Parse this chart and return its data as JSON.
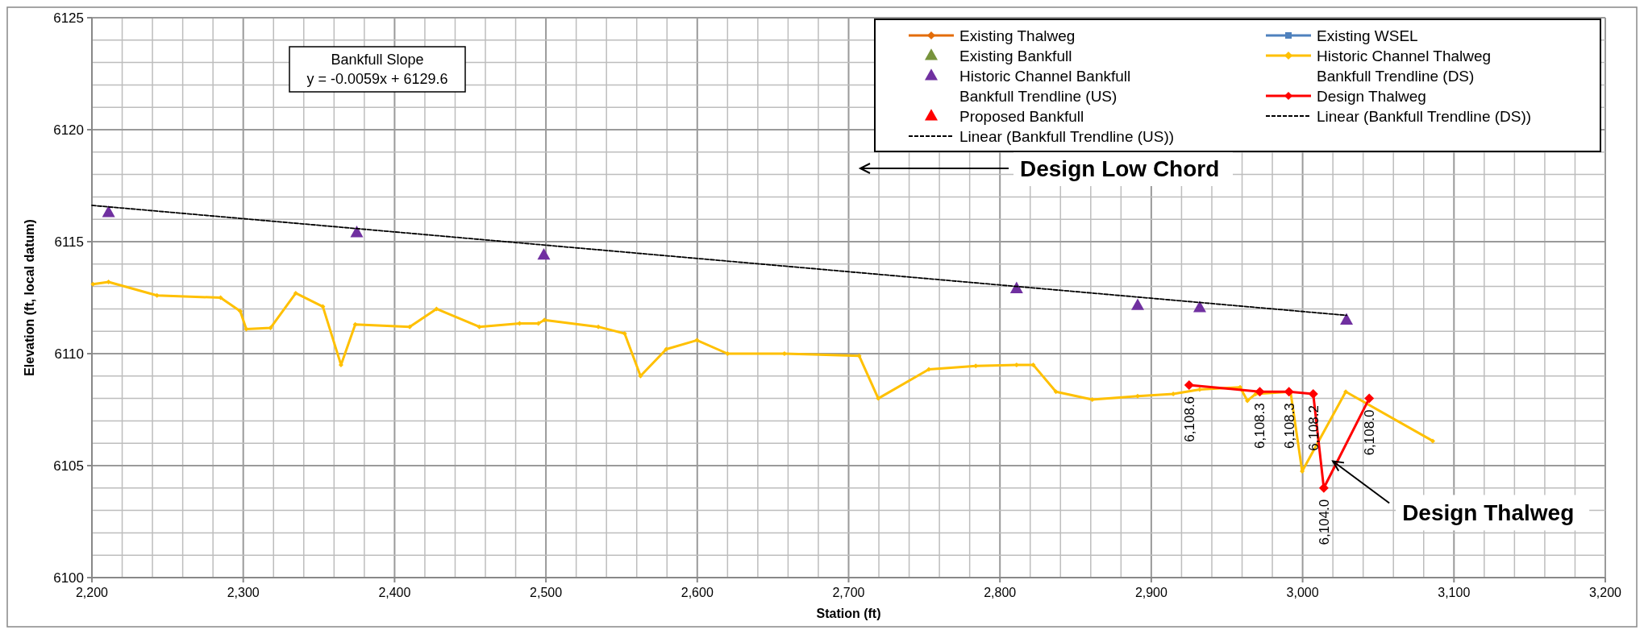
{
  "chart_data": {
    "type": "line",
    "xlabel": "Station (ft)",
    "ylabel": "Elevation (ft, local datum)",
    "xlim": [
      2200,
      3200
    ],
    "ylim": [
      6100,
      6125
    ],
    "xticks": [
      {
        "value": 2200,
        "label": "2,200"
      },
      {
        "value": 2220,
        "label": null
      },
      {
        "value": 2240,
        "label": null
      },
      {
        "value": 2260,
        "label": null
      },
      {
        "value": 2280,
        "label": null
      },
      {
        "value": 2300,
        "label": "2,300"
      },
      {
        "value": 2320,
        "label": null
      },
      {
        "value": 2340,
        "label": null
      },
      {
        "value": 2360,
        "label": null
      },
      {
        "value": 2380,
        "label": null
      },
      {
        "value": 2400,
        "label": "2,400"
      },
      {
        "value": 2420,
        "label": null
      },
      {
        "value": 2440,
        "label": null
      },
      {
        "value": 2460,
        "label": null
      },
      {
        "value": 2480,
        "label": null
      },
      {
        "value": 2500,
        "label": "2,500"
      },
      {
        "value": 2520,
        "label": null
      },
      {
        "value": 2540,
        "label": null
      },
      {
        "value": 2560,
        "label": null
      },
      {
        "value": 2580,
        "label": null
      },
      {
        "value": 2600,
        "label": "2,600"
      },
      {
        "value": 2620,
        "label": null
      },
      {
        "value": 2640,
        "label": null
      },
      {
        "value": 2660,
        "label": null
      },
      {
        "value": 2680,
        "label": null
      },
      {
        "value": 2700,
        "label": "2,700"
      },
      {
        "value": 2720,
        "label": null
      },
      {
        "value": 2740,
        "label": null
      },
      {
        "value": 2760,
        "label": null
      },
      {
        "value": 2780,
        "label": null
      },
      {
        "value": 2800,
        "label": "2,800"
      },
      {
        "value": 2820,
        "label": null
      },
      {
        "value": 2840,
        "label": null
      },
      {
        "value": 2860,
        "label": null
      },
      {
        "value": 2880,
        "label": null
      },
      {
        "value": 2900,
        "label": "2,900"
      },
      {
        "value": 2920,
        "label": null
      },
      {
        "value": 2940,
        "label": null
      },
      {
        "value": 2960,
        "label": null
      },
      {
        "value": 2980,
        "label": null
      },
      {
        "value": 3000,
        "label": "3,000"
      },
      {
        "value": 3020,
        "label": null
      },
      {
        "value": 3040,
        "label": null
      },
      {
        "value": 3060,
        "label": null
      },
      {
        "value": 3080,
        "label": null
      },
      {
        "value": 3100,
        "label": "3,100"
      },
      {
        "value": 3120,
        "label": null
      },
      {
        "value": 3140,
        "label": null
      },
      {
        "value": 3160,
        "label": null
      },
      {
        "value": 3180,
        "label": null
      },
      {
        "value": 3200,
        "label": "3,200"
      }
    ],
    "yticks": [
      6100,
      {
        "value": 6101,
        "label": null
      },
      {
        "value": 6102,
        "label": null
      },
      {
        "value": 6103,
        "label": null
      },
      {
        "value": 6104,
        "label": null
      },
      6105,
      {
        "value": 6106,
        "label": null
      },
      {
        "value": 6107,
        "label": null
      },
      {
        "value": 6108,
        "label": null
      },
      {
        "value": 6109,
        "label": null
      },
      6110,
      {
        "value": 6111,
        "label": null
      },
      {
        "value": 6112,
        "label": null
      },
      {
        "value": 6113,
        "label": null
      },
      {
        "value": 6114,
        "label": null
      },
      6115,
      {
        "value": 6116,
        "label": null
      },
      {
        "value": 6117,
        "label": null
      },
      {
        "value": 6118,
        "label": null
      },
      {
        "value": 6119,
        "label": null
      },
      6120,
      {
        "value": 6121,
        "label": null
      },
      {
        "value": 6122,
        "label": null
      },
      {
        "value": 6123,
        "label": null
      },
      {
        "value": 6124,
        "label": null
      },
      6125
    ],
    "grid": true,
    "legend": "top right",
    "series": [
      {
        "name": "Existing Thalweg",
        "color": "#e36c09",
        "marker": "diamond",
        "line_style": "solid"
      },
      {
        "name": "Existing WSEL",
        "color": "#4f81bd",
        "marker": "square",
        "line_style": "solid"
      },
      {
        "name": "Existing Bankfull",
        "type": "scatter",
        "color": "#77933c",
        "marker": "triangle"
      },
      {
        "name": "Historic Channel Thalweg",
        "color": "#ffc000",
        "marker": "diamond",
        "line_style": "solid",
        "x": [
          2200.7,
          2211,
          2243,
          2285,
          2298,
          2302,
          2318,
          2334.7,
          2352.6,
          2364.6,
          2374,
          2410,
          2427.7,
          2456,
          2482.6,
          2495,
          2499,
          2534.6,
          2552,
          2562.5,
          2579.5,
          2599.8,
          2620,
          2657.6,
          2707,
          2719.6,
          2753,
          2784,
          2811,
          2822,
          2837,
          2861,
          2891,
          2914.5,
          2932,
          2958.7,
          2963.5,
          2969,
          2992,
          2999.7,
          3028.5,
          3086
        ],
        "values": [
          6113.1,
          6113.2,
          6112.6,
          6112.5,
          6111.9,
          6111.1,
          6111.15,
          6112.7,
          6112.1,
          6109.5,
          6111.3,
          6111.2,
          6112,
          6111.2,
          6111.35,
          6111.35,
          6111.5,
          6111.2,
          6110.9,
          6109,
          6110.2,
          6110.6,
          6110,
          6110,
          6109.9,
          6108,
          6109.3,
          6109.45,
          6109.5,
          6109.5,
          6108.3,
          6107.95,
          6108.1,
          6108.2,
          6108.4,
          6108.5,
          6107.9,
          6108.2,
          6108.3,
          6104.75,
          6108.3,
          6106.1
        ]
      },
      {
        "name": "Historic Channel Bankfull",
        "type": "scatter",
        "color": "#7030a0",
        "marker": "triangle",
        "x": [
          2211,
          2375,
          2498.6,
          2811,
          2891,
          2932,
          3029
        ],
        "values": [
          6116.3,
          6115.4,
          6114.4,
          6112.9,
          6112.15,
          6112.05,
          6111.5
        ]
      },
      {
        "name": "Bankfull Trendline (DS)",
        "type": "scatter",
        "marker": "none"
      },
      {
        "name": "Bankfull Trendline (US)",
        "type": "scatter",
        "marker": "none"
      },
      {
        "name": "Design Thalweg",
        "color": "#ff0000",
        "marker": "diamond",
        "line_style": "solid",
        "x": [
          2925,
          2971.7,
          2991,
          3007,
          3014,
          3044
        ],
        "values": [
          6108.6,
          6108.3,
          6108.3,
          6108.2,
          6104.0,
          6108.0
        ],
        "value_labels": [
          "6,108.6",
          "6,108.3",
          "6,108.3",
          "6,108.2",
          "6,104.0",
          "6,108.0"
        ]
      },
      {
        "name": "Proposed Bankfull",
        "type": "scatter",
        "color": "#ff0000",
        "marker": "triangle"
      },
      {
        "name": "Linear (Bankfull Trendline (DS))",
        "color": "#000000",
        "marker": "none",
        "line_style": "dashed"
      },
      {
        "name": "Linear (Bankfull Trendline (US))",
        "color": "#000000",
        "marker": "none",
        "line_style": "dashed",
        "x": [
          2200,
          3029
        ],
        "values": [
          6116.62,
          6111.71
        ]
      }
    ],
    "annotations": [
      "Bankfull Slope\ny = -0.0059x + 6129.6",
      "Design Low Chord",
      {
        "text": "Design Thalweg",
        "x": 3020,
        "y": 6105.2
      }
    ]
  }
}
